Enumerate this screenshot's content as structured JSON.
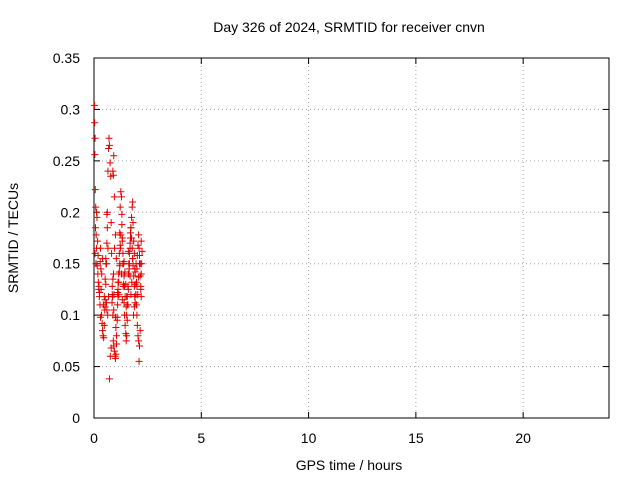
{
  "chart_data": {
    "type": "scatter",
    "title": "Day 326 of 2024, SRMTID for receiver cnvn",
    "xlabel": "GPS time / hours",
    "ylabel": "SRMTID / TECUs",
    "xlim": [
      0,
      24
    ],
    "ylim": [
      0,
      0.35
    ],
    "xticks": [
      0,
      5,
      10,
      15,
      20
    ],
    "xtick_labels": [
      "0",
      "5",
      "10",
      "15",
      "20"
    ],
    "yticks": [
      0,
      0.05,
      0.1,
      0.15,
      0.2,
      0.25,
      0.3,
      0.35
    ],
    "ytick_labels": [
      "0",
      "0.05",
      "0.1",
      "0.15",
      "0.2",
      "0.25",
      "0.3",
      "0.35"
    ],
    "grid": true,
    "marker": "+",
    "series": [
      {
        "name": "SRMTID",
        "color": "#e00000",
        "x": [
          0.02,
          0.03,
          0.05,
          0.04,
          0.06,
          0.08,
          0.07,
          0.1,
          0.12,
          0.05,
          0.09,
          0.15,
          0.18,
          0.2,
          0.22,
          0.25,
          0.28,
          0.3,
          0.12,
          0.14,
          0.17,
          0.19,
          0.23,
          0.26,
          0.29,
          0.32,
          0.35,
          0.38,
          0.4,
          0.42,
          0.45,
          0.48,
          0.5,
          0.52,
          0.55,
          0.58,
          0.6,
          0.62,
          0.65,
          0.68,
          0.7,
          0.72,
          0.75,
          0.78,
          0.8,
          0.82,
          0.85,
          0.88,
          0.9,
          0.92,
          0.95,
          0.98,
          1.0,
          1.02,
          1.05,
          1.08,
          1.1,
          1.12,
          1.15,
          1.18,
          1.2,
          1.22,
          1.25,
          1.28,
          1.3,
          1.32,
          1.35,
          1.38,
          1.4,
          1.42,
          1.45,
          1.48,
          1.5,
          1.52,
          1.55,
          1.58,
          1.6,
          1.62,
          1.65,
          1.68,
          1.7,
          1.72,
          1.75,
          1.78,
          1.8,
          1.82,
          1.85,
          1.88,
          1.9,
          1.92,
          1.95,
          1.98,
          2.0,
          2.02,
          2.05,
          2.08,
          2.1,
          2.12,
          2.15,
          2.18,
          2.2,
          2.22,
          0.6,
          0.62,
          0.65,
          0.55,
          0.52,
          0.58,
          0.88,
          0.9,
          0.92,
          0.95,
          0.91,
          0.93,
          1.0,
          1.02,
          1.05,
          0.85,
          0.87,
          1.1,
          1.12,
          1.15,
          1.18,
          1.2,
          1.22,
          1.25,
          1.3,
          1.32,
          1.35,
          1.38,
          1.4,
          1.42,
          1.45,
          1.5,
          1.52,
          1.55,
          1.58,
          1.6,
          1.62,
          1.65,
          1.68,
          1.7,
          1.72,
          1.75,
          1.78,
          1.8,
          1.82,
          1.85,
          1.88,
          1.9,
          1.92,
          1.95,
          1.98,
          2.0,
          2.02,
          2.05,
          2.08,
          2.1,
          2.12,
          2.15,
          2.18,
          2.2,
          0.3,
          0.33,
          0.36,
          0.4,
          0.44,
          0.48,
          0.52,
          0.56,
          0.6,
          0.64,
          0.68,
          0.72,
          0.76,
          0.8,
          0.84,
          0.88,
          0.92,
          0.96,
          1.0,
          1.04,
          1.08,
          1.12,
          1.16,
          1.2,
          1.24,
          1.28,
          1.32,
          1.36,
          1.4,
          1.44,
          1.48,
          1.52,
          1.56,
          1.6,
          1.64,
          1.68,
          1.72,
          1.76,
          1.8,
          1.84,
          1.88,
          1.92,
          1.96,
          2.0,
          2.04,
          2.08,
          2.12,
          2.16,
          2.2,
          2.24
        ],
        "y": [
          0.304,
          0.287,
          0.272,
          0.256,
          0.222,
          0.205,
          0.185,
          0.178,
          0.165,
          0.16,
          0.15,
          0.148,
          0.14,
          0.132,
          0.125,
          0.118,
          0.11,
          0.098,
          0.2,
          0.195,
          0.172,
          0.158,
          0.128,
          0.122,
          0.152,
          0.145,
          0.1,
          0.092,
          0.085,
          0.08,
          0.078,
          0.09,
          0.105,
          0.115,
          0.13,
          0.15,
          0.17,
          0.2,
          0.24,
          0.262,
          0.272,
          0.265,
          0.248,
          0.235,
          0.19,
          0.16,
          0.12,
          0.1,
          0.075,
          0.07,
          0.065,
          0.06,
          0.058,
          0.062,
          0.08,
          0.095,
          0.11,
          0.125,
          0.14,
          0.16,
          0.18,
          0.205,
          0.22,
          0.215,
          0.198,
          0.175,
          0.15,
          0.13,
          0.112,
          0.1,
          0.09,
          0.082,
          0.075,
          0.08,
          0.095,
          0.11,
          0.125,
          0.14,
          0.15,
          0.165,
          0.175,
          0.185,
          0.195,
          0.205,
          0.21,
          0.19,
          0.172,
          0.16,
          0.145,
          0.13,
          0.12,
          0.11,
          0.1,
          0.09,
          0.08,
          0.075,
          0.055,
          0.07,
          0.085,
          0.125,
          0.14,
          0.15,
          0.198,
          0.185,
          0.165,
          0.155,
          0.135,
          0.112,
          0.24,
          0.236,
          0.255,
          0.215,
          0.14,
          0.12,
          0.098,
          0.088,
          0.072,
          0.128,
          0.118,
          0.122,
          0.118,
          0.132,
          0.142,
          0.15,
          0.168,
          0.178,
          0.188,
          0.172,
          0.16,
          0.15,
          0.138,
          0.128,
          0.118,
          0.108,
          0.1,
          0.118,
          0.128,
          0.14,
          0.15,
          0.16,
          0.17,
          0.18,
          0.185,
          0.175,
          0.165,
          0.155,
          0.148,
          0.138,
          0.128,
          0.118,
          0.112,
          0.12,
          0.132,
          0.145,
          0.158,
          0.168,
          0.178,
          0.165,
          0.15,
          0.138,
          0.128,
          0.118,
          0.165,
          0.125,
          0.14,
          0.155,
          0.11,
          0.118,
          0.108,
          0.15,
          0.105,
          0.1,
          0.118,
          0.038,
          0.06,
          0.068,
          0.112,
          0.135,
          0.105,
          0.165,
          0.178,
          0.155,
          0.098,
          0.132,
          0.12,
          0.148,
          0.165,
          0.14,
          0.115,
          0.128,
          0.152,
          0.142,
          0.13,
          0.118,
          0.11,
          0.162,
          0.145,
          0.138,
          0.12,
          0.132,
          0.155,
          0.1,
          0.108,
          0.142,
          0.15,
          0.128,
          0.12,
          0.137,
          0.158,
          0.15,
          0.172,
          0.162
        ]
      }
    ]
  }
}
